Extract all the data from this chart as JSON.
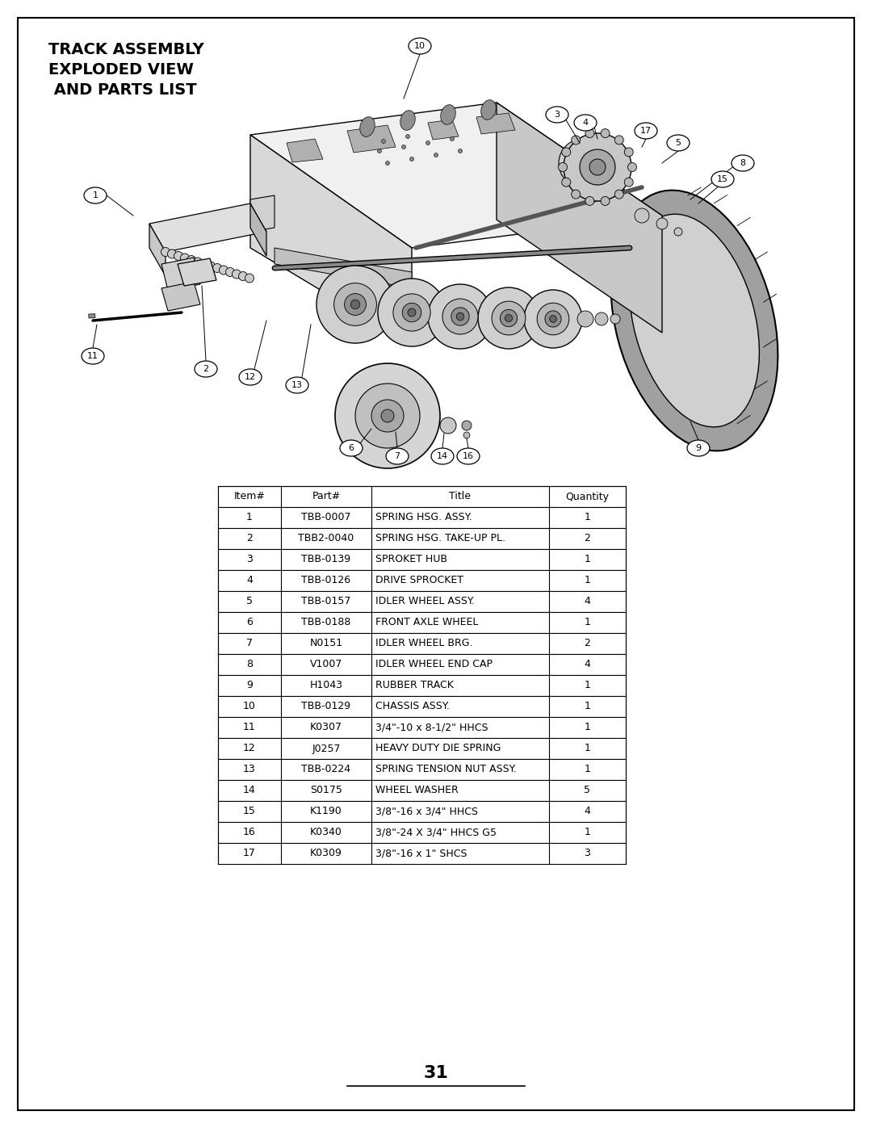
{
  "title_line1": "TRACK ASSEMBLY",
  "title_line2": "EXPLODED VIEW",
  "title_line3": " AND PARTS LIST",
  "page_number": "31",
  "background_color": "#ffffff",
  "border_color": "#000000",
  "table_headers": [
    "Item#",
    "Part#",
    "Title",
    "Quantity"
  ],
  "table_data": [
    [
      "1",
      "TBB-0007",
      "SPRING HSG. ASSY.",
      "1"
    ],
    [
      "2",
      "TBB2-0040",
      "SPRING HSG. TAKE-UP PL.",
      "2"
    ],
    [
      "3",
      "TBB-0139",
      "SPROKET HUB",
      "1"
    ],
    [
      "4",
      "TBB-0126",
      "DRIVE SPROCKET",
      "1"
    ],
    [
      "5",
      "TBB-0157",
      "IDLER WHEEL ASSY.",
      "4"
    ],
    [
      "6",
      "TBB-0188",
      "FRONT AXLE WHEEL",
      "1"
    ],
    [
      "7",
      "N0151",
      "IDLER WHEEL BRG.",
      "2"
    ],
    [
      "8",
      "V1007",
      "IDLER WHEEL END CAP",
      "4"
    ],
    [
      "9",
      "H1043",
      "RUBBER TRACK",
      "1"
    ],
    [
      "10",
      "TBB-0129",
      "CHASSIS ASSY.",
      "1"
    ],
    [
      "11",
      "K0307",
      "3/4\"-10 x 8-1/2\" HHCS",
      "1"
    ],
    [
      "12",
      "J0257",
      "HEAVY DUTY DIE SPRING",
      "1"
    ],
    [
      "13",
      "TBB-0224",
      "SPRING TENSION NUT ASSY.",
      "1"
    ],
    [
      "14",
      "S0175",
      "WHEEL WASHER",
      "5"
    ],
    [
      "15",
      "K1190",
      "3/8\"-16 x 3/4\" HHCS",
      "4"
    ],
    [
      "16",
      "K0340",
      "3/8\"-24 X 3/4\" HHCS G5",
      "1"
    ],
    [
      "17",
      "K0309",
      "3/8\"-16 x 1\" SHCS",
      "3"
    ]
  ]
}
